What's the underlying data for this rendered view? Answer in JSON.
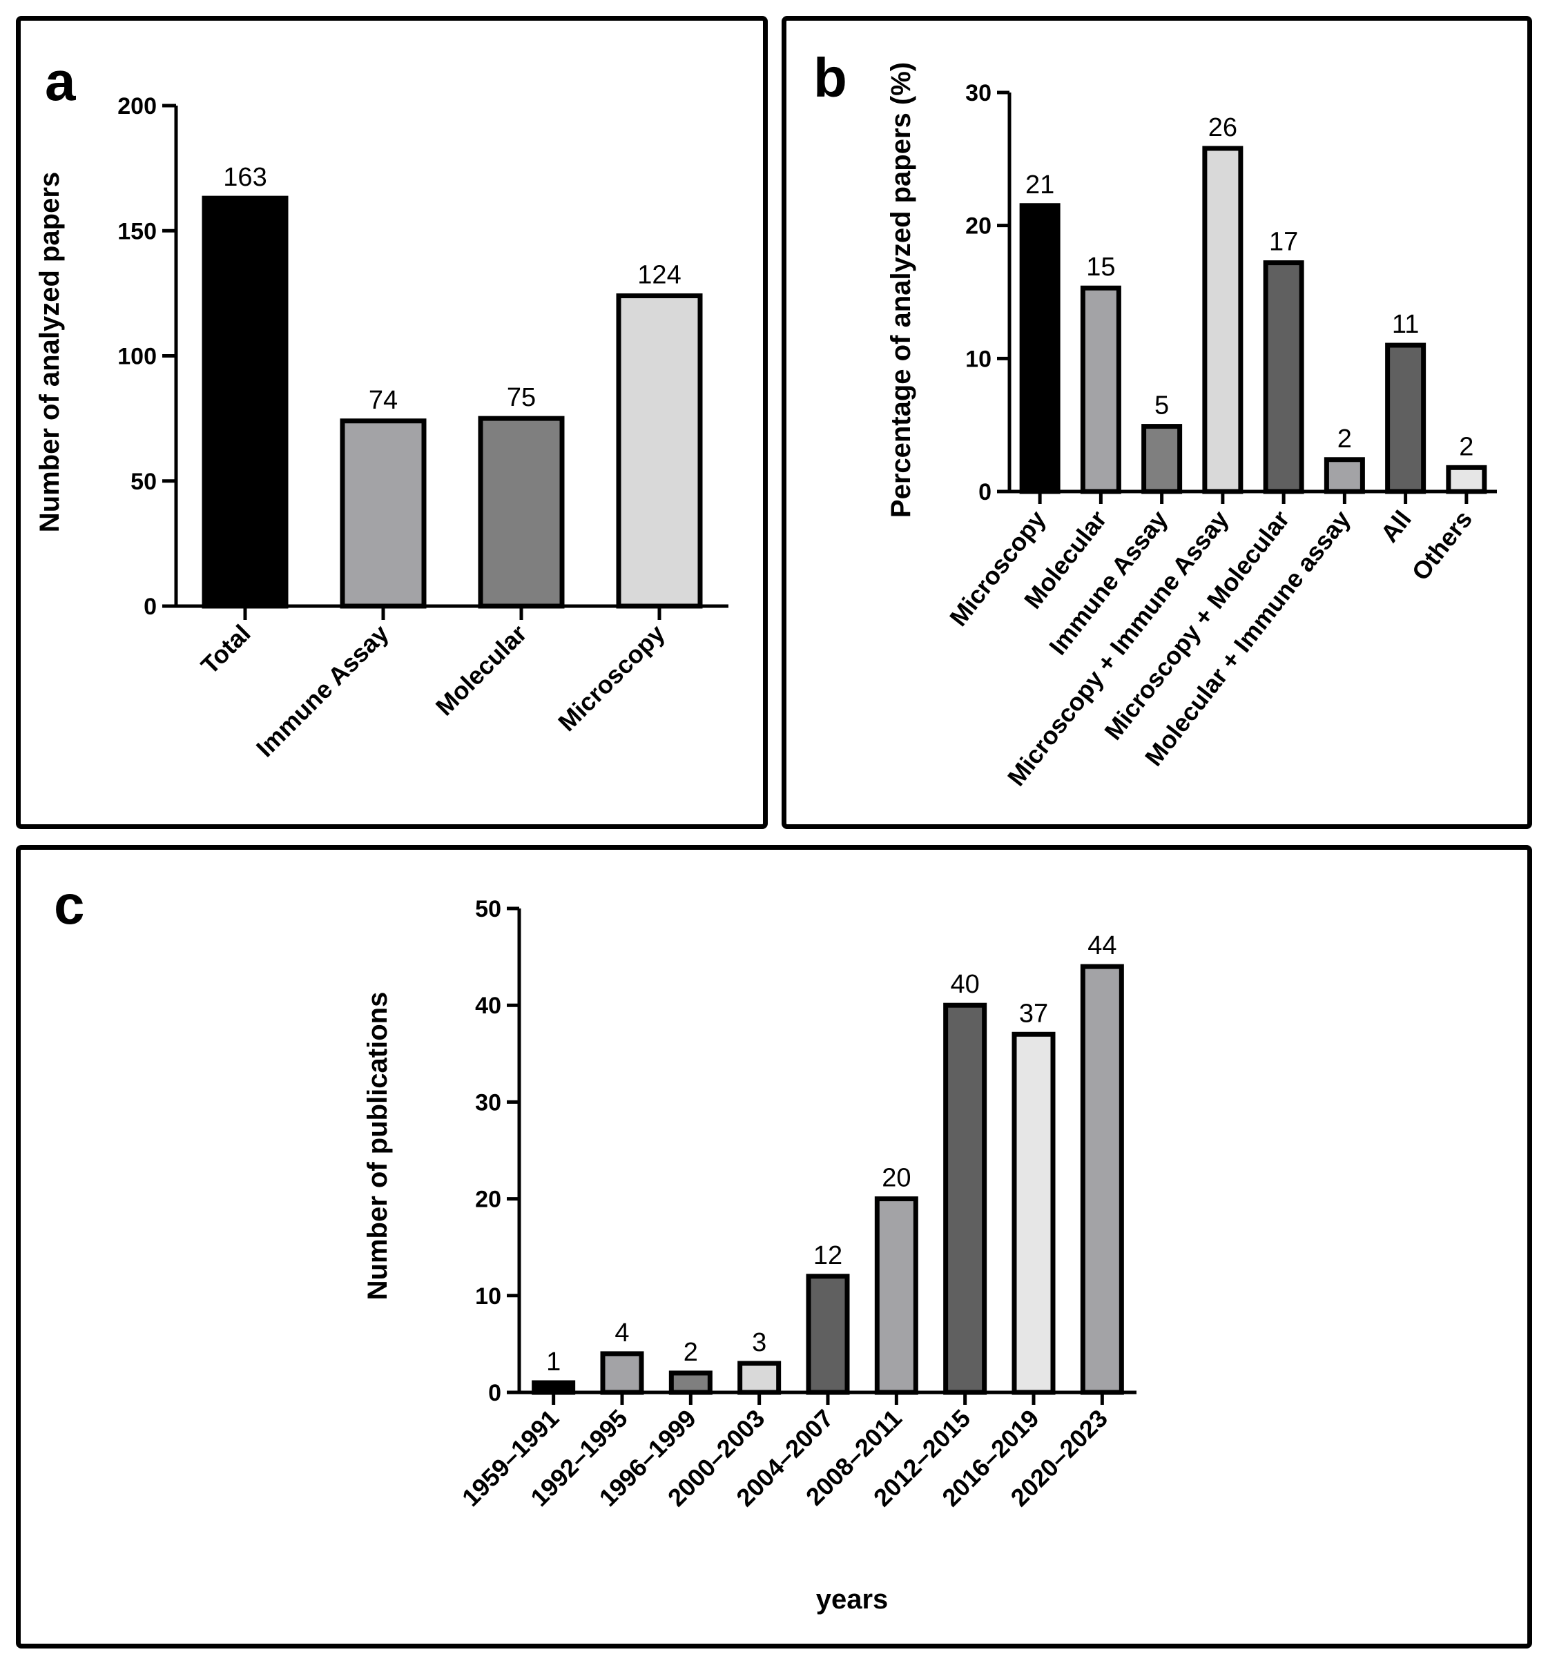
{
  "panels": {
    "a": {
      "letter": "a"
    },
    "b": {
      "letter": "b"
    },
    "c": {
      "letter": "c"
    }
  },
  "chart_data": [
    {
      "id": "a",
      "type": "bar",
      "title": "",
      "xlabel": "",
      "ylabel": "Number of analyzed papers",
      "ylim": [
        0,
        200
      ],
      "yticks": [
        0,
        50,
        100,
        150,
        200
      ],
      "categories": [
        "Total",
        "Immune Assay",
        "Molecular",
        "Microscopy"
      ],
      "values": [
        163,
        74,
        75,
        124
      ],
      "data_labels": [
        "163",
        "74",
        "75",
        "124"
      ],
      "colors": [
        "#000000",
        "#a3a3a6",
        "#7f7f7f",
        "#d9d9d9"
      ]
    },
    {
      "id": "b",
      "type": "bar",
      "title": "",
      "xlabel": "",
      "ylabel": "Percentage of analyzed papers (%)",
      "ylim": [
        0,
        30
      ],
      "yticks": [
        0,
        10,
        20,
        30
      ],
      "categories": [
        "Microscopy",
        "Molecular",
        "Immune Assay",
        "Microscopy + Immune Assay",
        "Microscopy + Molecular",
        "Molecular + Immune assay",
        "All",
        "Others"
      ],
      "values": [
        21.5,
        15.3,
        4.9,
        25.8,
        17.2,
        2.4,
        11.0,
        1.8
      ],
      "data_labels": [
        "21",
        "15",
        "5",
        "26",
        "17",
        "2",
        "11",
        "2"
      ],
      "colors": [
        "#000000",
        "#a3a3a6",
        "#7f7f7f",
        "#d9d9d9",
        "#606060",
        "#a3a3a6",
        "#606060",
        "#e6e6e6"
      ]
    },
    {
      "id": "c",
      "type": "bar",
      "title": "",
      "xlabel": "years",
      "ylabel": "Number of publications",
      "ylim": [
        0,
        50
      ],
      "yticks": [
        0,
        10,
        20,
        30,
        40,
        50
      ],
      "categories": [
        "1959–1991",
        "1992–1995",
        "1996–1999",
        "2000–2003",
        "2004–2007",
        "2008–2011",
        "2012–2015",
        "2016–2019",
        "2020–2023"
      ],
      "values": [
        1,
        4,
        2,
        3,
        12,
        20,
        40,
        37,
        44
      ],
      "data_labels": [
        "1",
        "4",
        "2",
        "3",
        "12",
        "20",
        "40",
        "37",
        "44"
      ],
      "colors": [
        "#000000",
        "#a3a3a6",
        "#7f7f7f",
        "#d9d9d9",
        "#606060",
        "#a3a3a6",
        "#606060",
        "#e6e6e6",
        "#a3a3a6"
      ]
    }
  ]
}
